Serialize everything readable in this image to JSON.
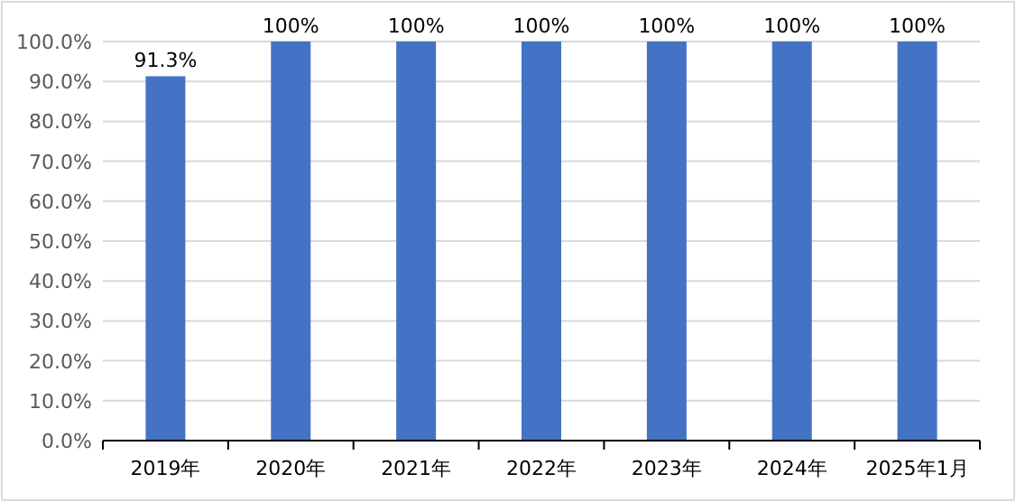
{
  "chart_data": {
    "type": "bar",
    "categories": [
      "2019年",
      "2020年",
      "2021年",
      "2022年",
      "2023年",
      "2024年",
      "2025年1月"
    ],
    "values": [
      91.3,
      100,
      100,
      100,
      100,
      100,
      100
    ],
    "color": "#4472c4",
    "value_labels": [
      "91.3%",
      "100%",
      "100%",
      "100%",
      "100%",
      "100%",
      "100%"
    ],
    "ylim": [
      0,
      100
    ],
    "yticks": [
      {
        "value": 0,
        "label": "0.0%"
      },
      {
        "value": 10,
        "label": "10.0%"
      },
      {
        "value": 20,
        "label": "20.0%"
      },
      {
        "value": 30,
        "label": "30.0%"
      },
      {
        "value": 40,
        "label": "40.0%"
      },
      {
        "value": 50,
        "label": "50.0%"
      },
      {
        "value": 60,
        "label": "60.0%"
      },
      {
        "value": 70,
        "label": "70.0%"
      },
      {
        "value": 80,
        "label": "80.0%"
      },
      {
        "value": 90,
        "label": "90.0%"
      },
      {
        "value": 100,
        "label": "100.0%"
      }
    ],
    "grid": "y"
  }
}
